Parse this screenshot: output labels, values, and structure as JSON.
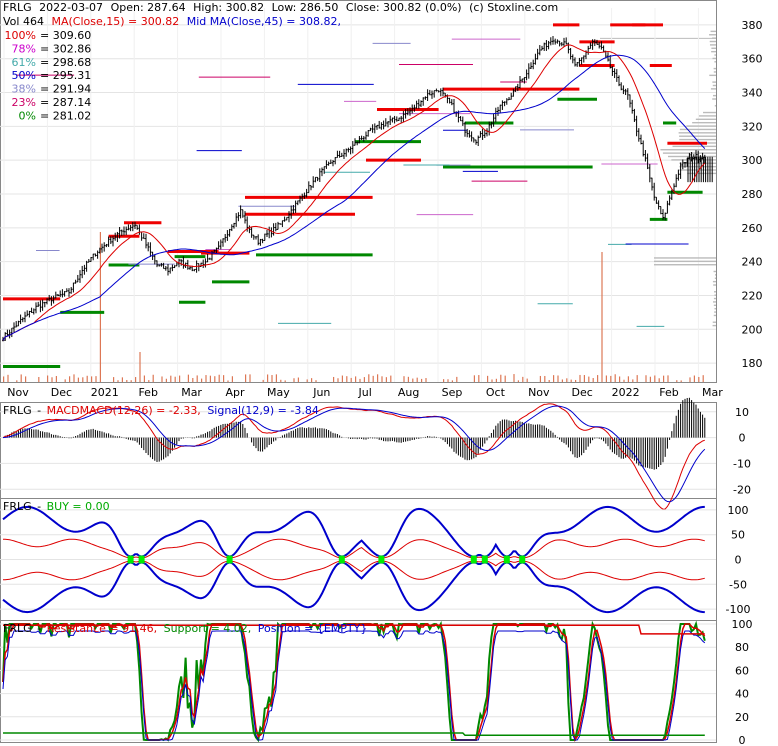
{
  "chart_data": [
    {
      "type": "candlestick",
      "header": {
        "symbol": "FRLG",
        "date": "2022-03-07",
        "open_label": "Open: 287.64",
        "high_label": "High: 300.82",
        "low_label": "Low: 286.50",
        "close_label": "Close: 300.82 (0.0%)",
        "source": "(c) Stoxline.com",
        "vol_label": "Vol 464",
        "ma15_label": "MA(Close,15) = 300.82",
        "ma45_label": "Mid MA(Close,45) = 308.82,"
      },
      "fib_levels": [
        {
          "label": "100%",
          "value": "309.60",
          "color": "#dd0000"
        },
        {
          "label": "78%",
          "value": "302.86",
          "color": "#cc00cc"
        },
        {
          "label": "61%",
          "value": "298.68",
          "color": "#44aaaa"
        },
        {
          "label": "50%",
          "value": "295.31",
          "color": "#0000cc"
        },
        {
          "label": "38%",
          "value": "291.94",
          "color": "#8888cc"
        },
        {
          "label": "23%",
          "value": "287.14",
          "color": "#cc0066"
        },
        {
          "label": "0%",
          "value": "281.02",
          "color": "#008800"
        }
      ],
      "y_ticks": [
        180,
        200,
        220,
        240,
        260,
        280,
        300,
        320,
        340,
        360,
        380
      ],
      "ylim": [
        170,
        390
      ],
      "x_labels": [
        "Nov",
        "Dec",
        "2021",
        "Feb",
        "Mar",
        "Apr",
        "May",
        "Jun",
        "Jul",
        "Aug",
        "Sep",
        "Oct",
        "Nov",
        "Dec",
        "2022",
        "Feb",
        "Mar"
      ],
      "close_anchors": [
        [
          0,
          195
        ],
        [
          8,
          205
        ],
        [
          15,
          213
        ],
        [
          22,
          218
        ],
        [
          30,
          222
        ],
        [
          36,
          235
        ],
        [
          42,
          245
        ],
        [
          48,
          252
        ],
        [
          54,
          258
        ],
        [
          60,
          262
        ],
        [
          65,
          250
        ],
        [
          70,
          238
        ],
        [
          75,
          235
        ],
        [
          80,
          240
        ],
        [
          86,
          236
        ],
        [
          92,
          240
        ],
        [
          98,
          248
        ],
        [
          104,
          262
        ],
        [
          108,
          270
        ],
        [
          112,
          258
        ],
        [
          116,
          252
        ],
        [
          120,
          256
        ],
        [
          126,
          262
        ],
        [
          132,
          272
        ],
        [
          138,
          282
        ],
        [
          144,
          292
        ],
        [
          150,
          300
        ],
        [
          156,
          305
        ],
        [
          162,
          312
        ],
        [
          168,
          318
        ],
        [
          174,
          322
        ],
        [
          180,
          325
        ],
        [
          186,
          330
        ],
        [
          192,
          338
        ],
        [
          198,
          342
        ],
        [
          204,
          332
        ],
        [
          210,
          318
        ],
        [
          215,
          312
        ],
        [
          220,
          318
        ],
        [
          226,
          332
        ],
        [
          232,
          340
        ],
        [
          238,
          352
        ],
        [
          244,
          365
        ],
        [
          250,
          372
        ],
        [
          256,
          368
        ],
        [
          260,
          355
        ],
        [
          264,
          362
        ],
        [
          268,
          370
        ],
        [
          272,
          366
        ],
        [
          276,
          355
        ],
        [
          280,
          345
        ],
        [
          284,
          338
        ],
        [
          288,
          318
        ],
        [
          292,
          300
        ],
        [
          296,
          278
        ],
        [
          300,
          265
        ],
        [
          304,
          282
        ],
        [
          308,
          296
        ],
        [
          312,
          302
        ]
      ],
      "ma15_color": "#dd0000",
      "ma45_color": "#0000cc",
      "resistance_color": "#ee0000",
      "support_color": "#008800"
    },
    {
      "type": "line",
      "header": {
        "symbol": "FRLG",
        "title": "MACD",
        "macd_label": "MACD(12,26) = -2.33,",
        "signal_label": "Signal(12,9) = -3.84"
      },
      "y_ticks": [
        10,
        0,
        -10,
        -20
      ],
      "ylim": [
        -23,
        13
      ],
      "macd_color": "#dd0000",
      "signal_color": "#0000cc",
      "hist_color": "#000000"
    },
    {
      "type": "line",
      "header": {
        "symbol": "FRLG",
        "buy_label": "BUY = 0.00"
      },
      "y_ticks": [
        100,
        50,
        0,
        -50,
        -100
      ],
      "ylim": [
        -120,
        120
      ],
      "band_color": "#0000cc",
      "inner_color": "#dd0000",
      "signal_color": "#00ee00",
      "buy_index": [
        58,
        63,
        103,
        154,
        172,
        214,
        219,
        229,
        236
      ]
    },
    {
      "type": "line",
      "header": {
        "symbol": "FRLG",
        "resistance_label": "Resistance = 91.46,",
        "support_label": "Support = 4.02,",
        "position_label": "Position = {EMPTY}"
      },
      "y_ticks": [
        100,
        80,
        60,
        40,
        20,
        0
      ],
      "ylim": [
        0,
        100
      ],
      "resistance_color": "#dd0000",
      "support_color": "#008800"
    }
  ]
}
